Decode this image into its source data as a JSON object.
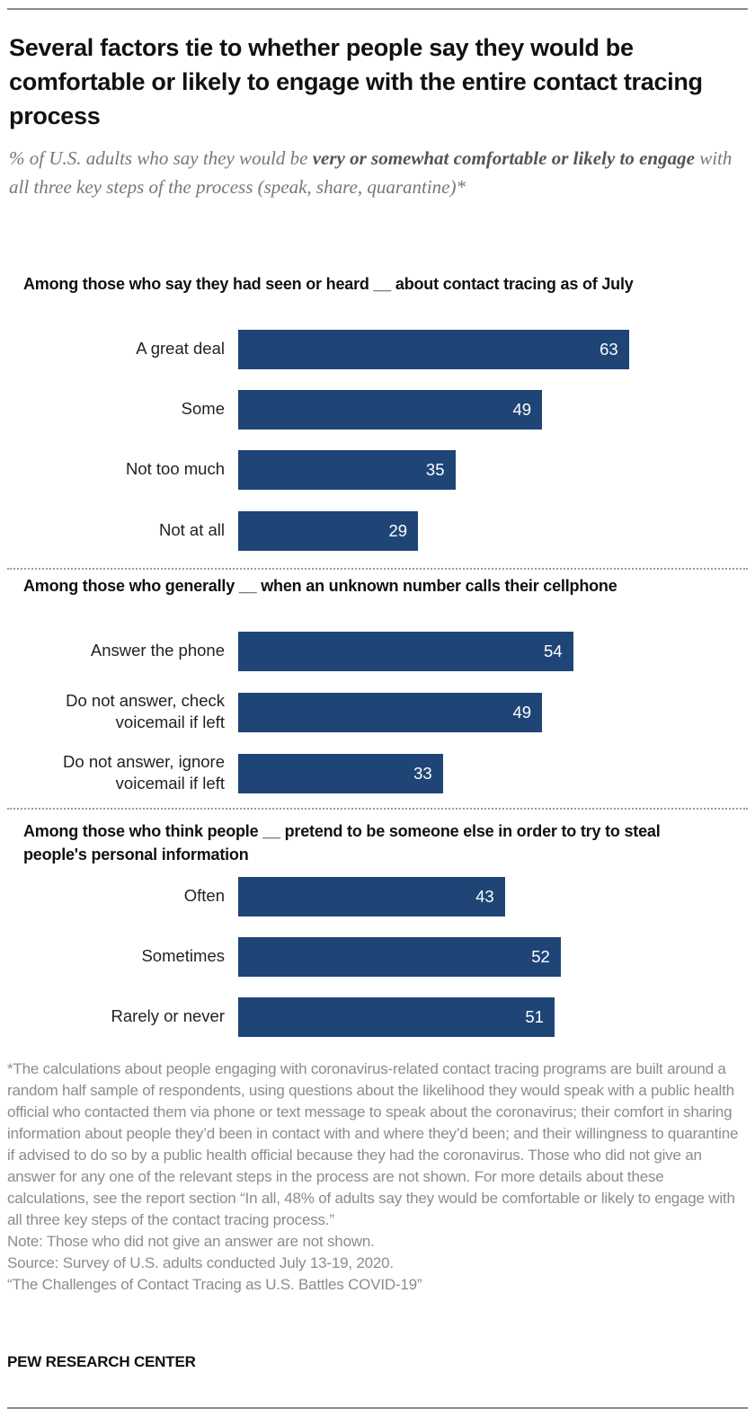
{
  "header": {
    "title": "Several factors tie to whether people say they would be comfortable or likely to engage with the entire contact tracing process",
    "subtitle_pre": "% of U.S. adults who say they would be ",
    "subtitle_bold": "very or somewhat comfortable or likely to engage",
    "subtitle_post": " with all three key steps of the process (speak, share, quarantine)*"
  },
  "chart_data": {
    "type": "bar",
    "orientation": "horizontal",
    "title": "Several factors tie to whether people say they would be comfortable or likely to engage with the entire contact tracing process",
    "subtitle": "% of U.S. adults who say they would be very or somewhat comfortable or likely to engage with all three key steps of the process (speak, share, quarantine)*",
    "xlabel": "",
    "ylabel": "",
    "xlim": [
      0,
      100
    ],
    "grid": false,
    "legend": "none",
    "bar_color": "#1F4577",
    "groups": [
      {
        "heading": "Among those who say they had seen or heard __ about contact tracing as of July",
        "categories": [
          "A great deal",
          "Some",
          "Not too much",
          "Not at all"
        ],
        "values": [
          63,
          49,
          35,
          29
        ]
      },
      {
        "heading": "Among those who generally __ when an unknown number calls their cellphone",
        "categories": [
          "Answer the phone",
          "Do not answer, check voicemail if left",
          "Do not answer, ignore voicemail if left"
        ],
        "categories_lines": [
          [
            "Answer the phone"
          ],
          [
            "Do not answer, check",
            "voicemail if left"
          ],
          [
            "Do not answer, ignore",
            "voicemail if left"
          ]
        ],
        "values": [
          54,
          49,
          33
        ]
      },
      {
        "heading": "Among those who think people __ pretend to be someone else in order to try to steal people's personal information",
        "categories": [
          "Often",
          "Sometimes",
          "Rarely or never"
        ],
        "values": [
          43,
          52,
          51
        ]
      }
    ]
  },
  "footer": {
    "footnote": "*The calculations about people engaging with coronavirus-related contact tracing programs are built around a random half sample of respondents, using questions about the likelihood they would speak with a public health official who contacted them via phone or text message to speak about the coronavirus; their comfort in sharing information about people they’d been in contact with and where they’d been; and their willingness to quarantine if advised to do so by a public health official because they had the coronavirus. Those who did not give an answer for any one of the relevant steps in the process are not shown. For more details about these calculations, see the report section “In all, 48% of adults say they would be comfortable or likely to engage with all three key steps of the contact tracing process.”",
    "note": "Note: Those who did not give an answer are not shown.",
    "source": "Source: Survey of U.S. adults conducted July 13-19, 2020.",
    "report": "“The Challenges of Contact Tracing as U.S. Battles COVID-19”",
    "brand": "PEW RESEARCH CENTER"
  }
}
